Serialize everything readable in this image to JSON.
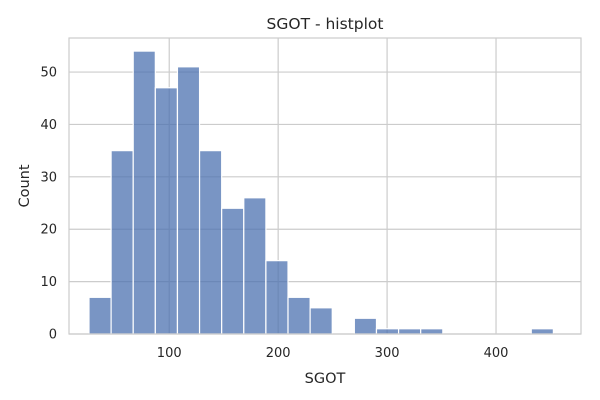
{
  "chart_data": {
    "type": "histogram",
    "title": "SGOT - histplot",
    "xlabel": "SGOT",
    "ylabel": "Count",
    "xlim": [
      8,
      478
    ],
    "ylim": [
      0,
      56.5
    ],
    "grid": true,
    "x_ticks": [
      100,
      200,
      300,
      400
    ],
    "y_ticks": [
      0,
      10,
      20,
      30,
      40,
      50
    ],
    "bin_start": 26.35,
    "bin_width": 20.3,
    "counts": [
      7,
      35,
      54,
      47,
      51,
      35,
      24,
      26,
      14,
      7,
      5,
      0,
      3,
      1,
      1,
      1,
      0,
      0,
      0,
      0,
      1
    ],
    "bar_color": "#4c72b0"
  }
}
